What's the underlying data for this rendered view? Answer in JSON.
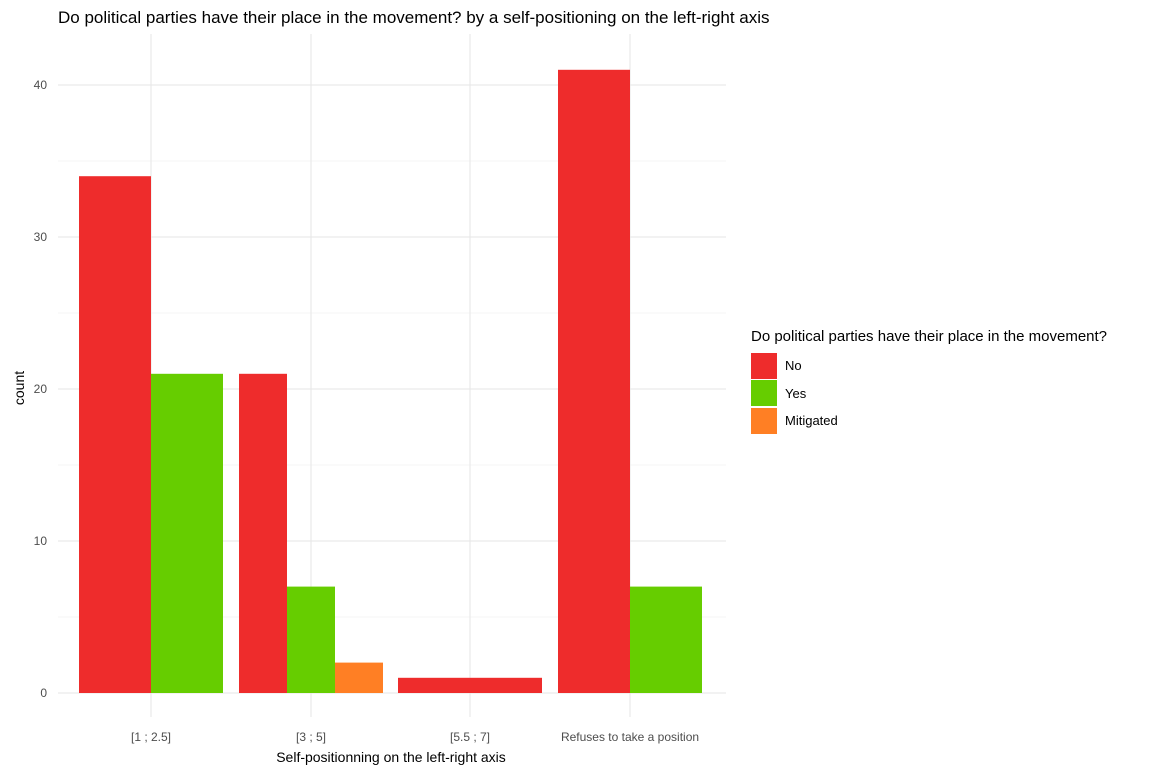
{
  "chart_data": {
    "type": "bar",
    "title": "Do political parties have their place in the movement? by a self-positioning on the left-right axis",
    "xlabel": "Self-positionning on the left-right axis",
    "ylabel": "count",
    "categories": [
      "[1 ; 2.5]",
      "[3 ; 5]",
      "[5.5 ; 7]",
      "Refuses to take a position"
    ],
    "series": [
      {
        "name": "No",
        "color": "#EE2C2C",
        "values": [
          34,
          21,
          1,
          41
        ]
      },
      {
        "name": "Yes",
        "color": "#66CD00",
        "values": [
          21,
          7,
          null,
          7
        ]
      },
      {
        "name": "Mitigated",
        "color": "#FF7F24",
        "values": [
          null,
          2,
          null,
          null
        ]
      }
    ],
    "ylim": [
      0,
      42.5
    ],
    "y_ticks": [
      0,
      10,
      20,
      30,
      40
    ],
    "grid": true,
    "legend": {
      "title": "Do political parties have their place in the movement?",
      "position": "right"
    },
    "bar_position": "dodge2"
  }
}
